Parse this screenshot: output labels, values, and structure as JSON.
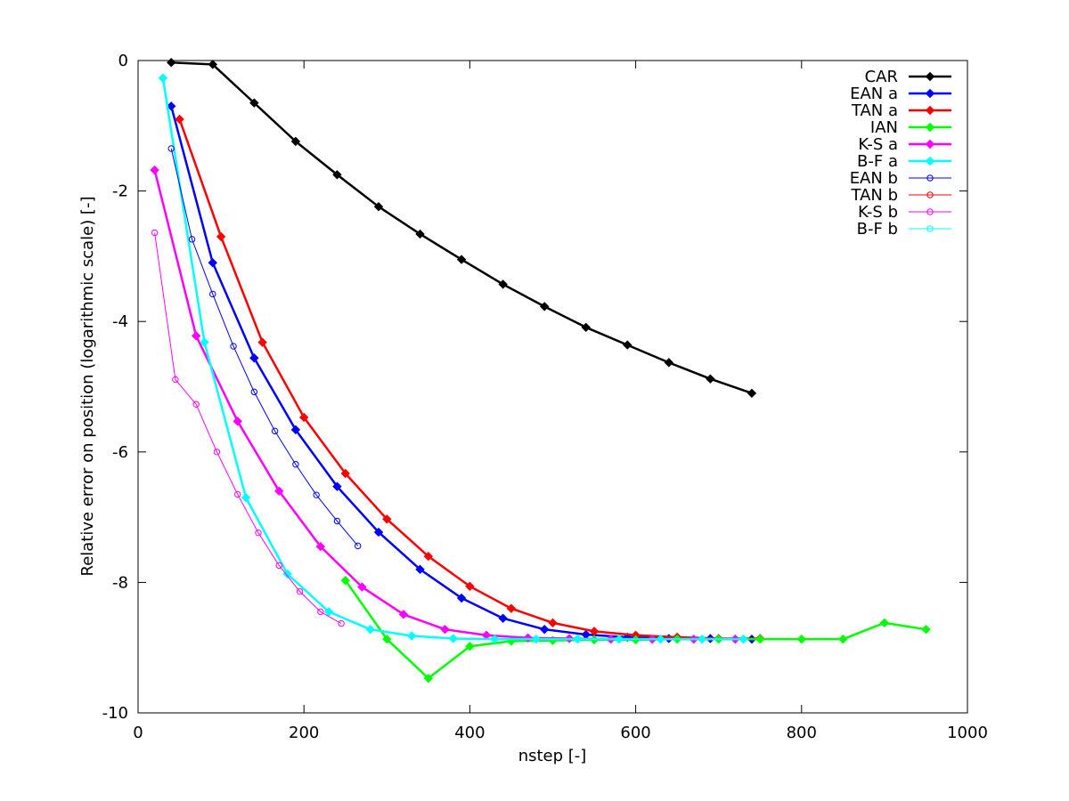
{
  "chart_data": {
    "type": "line",
    "title": "",
    "xlabel": "nstep [-]",
    "ylabel": "Relative error on position (logarithmic scale) [-]",
    "xlim": [
      0,
      1000
    ],
    "ylim": [
      -10,
      0
    ],
    "xticks": [
      0,
      200,
      400,
      600,
      800,
      1000
    ],
    "yticks": [
      -10,
      -8,
      -6,
      -4,
      -2,
      0
    ],
    "grid": false,
    "legend_position": "top-right",
    "series": [
      {
        "name": "CAR",
        "color": "#000000",
        "marker": "filled-diamond",
        "line": "thick",
        "x": [
          40,
          90,
          140,
          190,
          240,
          290,
          340,
          390,
          440,
          490,
          540,
          590,
          640,
          690,
          740
        ],
        "y": [
          -0.03,
          -0.06,
          -0.65,
          -1.24,
          -1.75,
          -2.24,
          -2.66,
          -3.05,
          -3.43,
          -3.77,
          -4.09,
          -4.36,
          -4.63,
          -4.88,
          -5.1
        ]
      },
      {
        "name": "EAN a",
        "color": "#0000ff",
        "marker": "filled-diamond",
        "line": "thick",
        "x": [
          40,
          90,
          140,
          190,
          240,
          290,
          340,
          390,
          440,
          490,
          540,
          590,
          640,
          690,
          740
        ],
        "y": [
          -0.7,
          -3.1,
          -4.56,
          -5.66,
          -6.53,
          -7.23,
          -7.8,
          -8.24,
          -8.55,
          -8.72,
          -8.8,
          -8.84,
          -8.86,
          -8.86,
          -8.87
        ]
      },
      {
        "name": "TAN a",
        "color": "#ff0000",
        "marker": "filled-diamond",
        "line": "thick",
        "x": [
          50,
          100,
          150,
          200,
          250,
          300,
          350,
          400,
          450,
          500,
          550,
          600,
          650,
          700,
          750
        ],
        "y": [
          -0.9,
          -2.7,
          -4.32,
          -5.47,
          -6.33,
          -7.03,
          -7.6,
          -8.06,
          -8.4,
          -8.62,
          -8.75,
          -8.81,
          -8.84,
          -8.86,
          -8.86
        ]
      },
      {
        "name": "IAN",
        "color": "#00ff00",
        "marker": "filled-diamond",
        "line": "thick",
        "x": [
          250,
          300,
          350,
          400,
          450,
          500,
          550,
          600,
          650,
          700,
          750,
          800,
          850,
          900,
          950
        ],
        "y": [
          -7.97,
          -8.87,
          -9.47,
          -8.98,
          -8.9,
          -8.89,
          -8.88,
          -8.88,
          -8.87,
          -8.87,
          -8.87,
          -8.87,
          -8.87,
          -8.62,
          -8.72
        ]
      },
      {
        "name": "K-S a",
        "color": "#ff00ff",
        "marker": "filled-diamond",
        "line": "thick",
        "x": [
          20,
          70,
          120,
          170,
          220,
          270,
          320,
          370,
          420,
          470,
          520,
          570,
          620,
          670,
          720
        ],
        "y": [
          -1.68,
          -4.22,
          -5.53,
          -6.6,
          -7.45,
          -8.07,
          -8.49,
          -8.72,
          -8.81,
          -8.85,
          -8.86,
          -8.87,
          -8.87,
          -8.87,
          -8.87
        ]
      },
      {
        "name": "B-F a",
        "color": "#00ffff",
        "marker": "filled-diamond",
        "line": "thick",
        "x": [
          30,
          80,
          130,
          180,
          230,
          280,
          330,
          380,
          430,
          480,
          530,
          580,
          630,
          680,
          730
        ],
        "y": [
          -0.27,
          -4.32,
          -6.7,
          -7.87,
          -8.45,
          -8.72,
          -8.82,
          -8.86,
          -8.87,
          -8.87,
          -8.87,
          -8.87,
          -8.87,
          -8.87,
          -8.87
        ]
      },
      {
        "name": "EAN b",
        "color": "#0000ff",
        "marker": "open-circle",
        "line": "thin",
        "x": [
          40,
          65,
          90,
          115,
          140,
          165,
          190,
          215,
          240,
          265
        ],
        "y": [
          -1.35,
          -2.74,
          -3.58,
          -4.38,
          -5.08,
          -5.68,
          -6.19,
          -6.66,
          -7.06,
          -7.44
        ]
      },
      {
        "name": "TAN b",
        "color": "#ff0000",
        "marker": "open-circle",
        "line": "thin",
        "x": [],
        "y": []
      },
      {
        "name": "K-S b",
        "color": "#ff00ff",
        "marker": "open-circle",
        "line": "thin",
        "x": [
          20,
          45,
          70,
          95,
          120,
          145,
          170,
          195,
          220,
          245
        ],
        "y": [
          -2.64,
          -4.89,
          -5.27,
          -6.0,
          -6.65,
          -7.24,
          -7.74,
          -8.14,
          -8.45,
          -8.63
        ]
      },
      {
        "name": "B-F b",
        "color": "#00ffff",
        "marker": "open-circle",
        "line": "thin",
        "x": [],
        "y": []
      }
    ]
  }
}
